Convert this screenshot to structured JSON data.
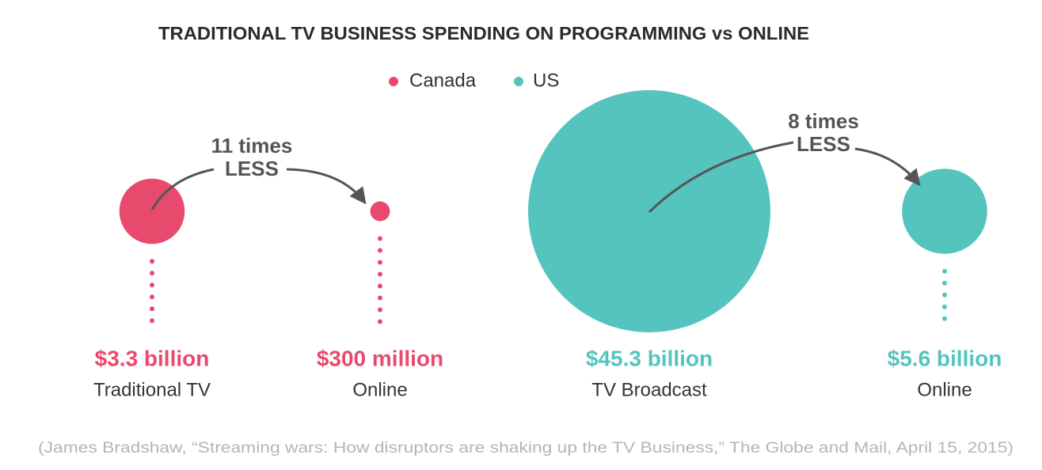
{
  "chart_data": {
    "type": "bubble",
    "title": "TRADITIONAL TV BUSINESS SPENDING ON PROGRAMMING vs ONLINE",
    "series": [
      {
        "name": "Canada",
        "color": "#e84a6d",
        "categories": [
          "Traditional TV",
          "Online"
        ],
        "values": [
          3300000000,
          300000000
        ],
        "value_labels": [
          "$3.3 billion",
          "$300 million"
        ],
        "annotation": [
          "11 times",
          "LESS"
        ]
      },
      {
        "name": "US",
        "color": "#55c4be",
        "categories": [
          "TV Broadcast",
          "Online"
        ],
        "values": [
          45300000000,
          5600000000
        ],
        "value_labels": [
          "$45.3 billion",
          "$5.6 billion"
        ],
        "annotation": [
          "8 times",
          "LESS"
        ]
      }
    ],
    "source": "(James Bradshaw, “Streaming wars: How disruptors are shaking up the TV Business,” The Globe and Mail, April 15, 2015)"
  }
}
